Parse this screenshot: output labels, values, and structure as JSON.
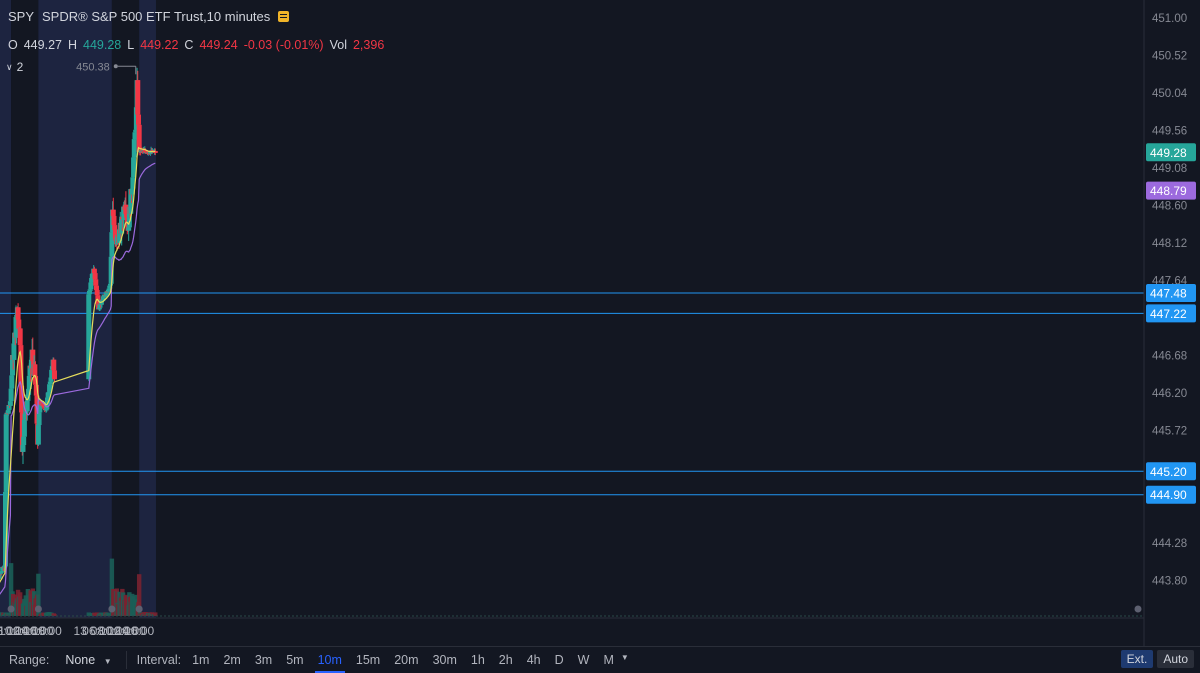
{
  "header": {
    "symbol": "SPY",
    "description": "SPDR® S&P 500 ETF Trust,10 minutes",
    "badge_icon": "flag-icon"
  },
  "ohlc": {
    "o_label": "O",
    "o": "449.27",
    "h_label": "H",
    "h": "449.28",
    "l_label": "L",
    "l": "449.22",
    "c_label": "C",
    "c": "449.24",
    "change": "-0.03 (-0.01%)",
    "vol_label": "Vol",
    "vol": "2,396"
  },
  "studies_toggle": {
    "icon": "chevron-down-icon",
    "count": "2"
  },
  "toolbar": {
    "range_label": "Range:",
    "range_value": "None",
    "interval_label": "Interval:",
    "intervals": [
      "1m",
      "2m",
      "3m",
      "5m",
      "10m",
      "15m",
      "20m",
      "30m",
      "1h",
      "2h",
      "4h",
      "D",
      "W",
      "M"
    ],
    "active_interval": "10m",
    "ext_label": "Ext.",
    "auto_label": "Auto"
  },
  "colors": {
    "background": "#131722",
    "session_shade": "#1d2440",
    "up": "#26a69a",
    "down": "#f23645",
    "ma_line": "#e5dc5c",
    "vwap_line": "#9c6ade",
    "level_line": "#2196f3",
    "last_price_badge": "#26a69a",
    "vwap_badge": "#9c6ade"
  },
  "chart_data": {
    "type": "candlestick",
    "symbol": "SPY",
    "interval": "10 minutes",
    "y_axis": {
      "range": [
        443.4,
        451.1
      ],
      "ticks": [
        "451.00",
        "450.52",
        "450.04",
        "449.56",
        "449.08",
        "448.60",
        "448.12",
        "447.64",
        "446.68",
        "446.20",
        "445.72",
        "444.28",
        "443.80"
      ]
    },
    "x_axis": {
      "ticks": [
        "08:00",
        "10:00",
        "12:00",
        "14:00",
        "16:00",
        "18:00",
        "13",
        "06:00",
        "08:00",
        "10:00",
        "12:00",
        "14:00",
        "16:00"
      ]
    },
    "horizontal_levels": [
      447.48,
      447.22,
      445.2,
      444.9
    ],
    "price_labels": {
      "last": "449.28",
      "vwap": "448.79",
      "high_marker": "450.38"
    },
    "series_ohlc_keyframes": [
      {
        "t": "04:10",
        "price": 443.6
      },
      {
        "t": "07:10",
        "price": 443.9
      },
      {
        "t": "08:10",
        "price": 444.0
      },
      {
        "t": "08:30",
        "price": 445.9
      },
      {
        "t": "09:30",
        "price": 446.1
      },
      {
        "t": "10:00",
        "price": 446.6
      },
      {
        "t": "11:10",
        "price": 447.3
      },
      {
        "t": "11:50",
        "price": 446.9
      },
      {
        "t": "12:20",
        "price": 445.4
      },
      {
        "t": "12:50",
        "price": 445.9
      },
      {
        "t": "13:30",
        "price": 446.1
      },
      {
        "t": "14:40",
        "price": 446.7
      },
      {
        "t": "15:30",
        "price": 446.3
      },
      {
        "t": "16:00",
        "price": 445.6
      },
      {
        "t": "16:30",
        "price": 446.1
      },
      {
        "t": "18:00",
        "price": 446.0
      },
      {
        "t": "19:40",
        "price": 446.6
      },
      {
        "t": "20:00",
        "price": 446.4
      },
      {
        "t": "04:00",
        "price": 447.4
      },
      {
        "t": "05:20",
        "price": 447.8
      },
      {
        "t": "06:30",
        "price": 447.3
      },
      {
        "t": "08:30",
        "price": 447.5
      },
      {
        "t": "09:20",
        "price": 447.6
      },
      {
        "t": "09:50",
        "price": 448.6
      },
      {
        "t": "10:30",
        "price": 448.1
      },
      {
        "t": "11:50",
        "price": 448.3
      },
      {
        "t": "12:50",
        "price": 448.7
      },
      {
        "t": "13:30",
        "price": 448.3
      },
      {
        "t": "14:30",
        "price": 448.9
      },
      {
        "t": "15:30",
        "price": 449.8
      },
      {
        "t": "15:40",
        "price": 450.1
      },
      {
        "t": "16:10",
        "price": 449.3
      },
      {
        "t": "19:50",
        "price": 449.28
      }
    ],
    "sessions": [
      {
        "type": "extended",
        "from": "04:00",
        "to": "09:30"
      },
      {
        "type": "regular",
        "from": "09:30",
        "to": "16:00"
      },
      {
        "type": "extended",
        "from": "16:00",
        "to": "04:00"
      },
      {
        "type": "regular",
        "from": "09:30",
        "to": "16:00"
      },
      {
        "type": "extended",
        "from": "16:00",
        "to": "20:00"
      }
    ]
  }
}
